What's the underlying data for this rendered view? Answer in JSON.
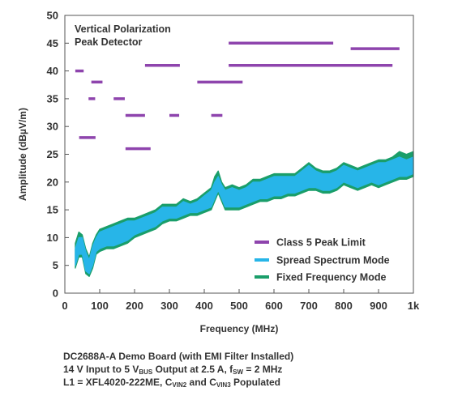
{
  "chart_data": {
    "type": "line",
    "annotation": [
      "Vertical Polarization",
      "Peak Detector"
    ],
    "xlabel": "Frequency (MHz)",
    "ylabel": "Amplitude (dBµV/m)",
    "xlim": [
      0,
      1000
    ],
    "ylim": [
      0,
      50
    ],
    "x_ticks": [
      0,
      100,
      200,
      300,
      400,
      500,
      600,
      700,
      800,
      900,
      1000
    ],
    "x_tick_labels": [
      "0",
      "100",
      "200",
      "300",
      "400",
      "500",
      "600",
      "700",
      "800",
      "900",
      "1k"
    ],
    "y_ticks": [
      0,
      5,
      10,
      15,
      20,
      25,
      30,
      35,
      40,
      45,
      50
    ],
    "y_tick_labels": [
      "0",
      "5",
      "10",
      "15",
      "20",
      "25",
      "30",
      "35",
      "40",
      "45",
      "50"
    ],
    "grid": false,
    "legend_position": "bottom-right",
    "limit_segments": {
      "name": "Class 5 Peak Limit",
      "color": "#8e44ad",
      "segments": [
        {
          "x": [
            30,
            54
          ],
          "y": 40
        },
        {
          "x": [
            41,
            88
          ],
          "y": 28
        },
        {
          "x": [
            68,
            87
          ],
          "y": 35
        },
        {
          "x": [
            76,
            108
          ],
          "y": 38
        },
        {
          "x": [
            140,
            172
          ],
          "y": 35
        },
        {
          "x": [
            174,
            230
          ],
          "y": 32
        },
        {
          "x": [
            174,
            246
          ],
          "y": 26
        },
        {
          "x": [
            230,
            330
          ],
          "y": 41
        },
        {
          "x": [
            300,
            328
          ],
          "y": 32
        },
        {
          "x": [
            380,
            510
          ],
          "y": 38
        },
        {
          "x": [
            420,
            452
          ],
          "y": 32
        },
        {
          "x": [
            470,
            770
          ],
          "y": 45
        },
        {
          "x": [
            470,
            940
          ],
          "y": 41
        },
        {
          "x": [
            820,
            960
          ],
          "y": 44
        }
      ]
    },
    "series": [
      {
        "name": "Spread Spectrum Mode",
        "color": "#27b5e8",
        "x": [
          30,
          40,
          50,
          60,
          70,
          80,
          90,
          100,
          120,
          140,
          160,
          180,
          200,
          220,
          240,
          260,
          280,
          300,
          320,
          340,
          360,
          380,
          400,
          420,
          430,
          440,
          450,
          460,
          480,
          500,
          520,
          540,
          560,
          580,
          600,
          620,
          640,
          660,
          680,
          700,
          720,
          740,
          760,
          780,
          800,
          820,
          840,
          860,
          880,
          900,
          920,
          940,
          960,
          980,
          1000
        ],
        "low": [
          5,
          7,
          7,
          4,
          3.5,
          5,
          7.5,
          8,
          8.5,
          8.5,
          9,
          9.5,
          10.5,
          11,
          11.5,
          12,
          13,
          13.5,
          13.5,
          14,
          14.5,
          14.5,
          15,
          15.5,
          17,
          18.5,
          17,
          15.5,
          15.5,
          15.5,
          16,
          16.5,
          17,
          17,
          17.5,
          17.5,
          18,
          18,
          18.5,
          19,
          19,
          18.5,
          18.5,
          19,
          20,
          19.5,
          19,
          19.5,
          20,
          19.5,
          20,
          20.5,
          21,
          21,
          21.5
        ],
        "high": [
          8,
          10,
          10,
          7.5,
          6,
          8.5,
          10,
          11,
          11.5,
          12,
          12.5,
          13,
          13,
          13.5,
          14,
          14.5,
          15.5,
          15.5,
          15.5,
          16.5,
          16,
          16.5,
          17.5,
          18.5,
          20,
          21,
          19.5,
          18.5,
          19,
          18.5,
          19,
          20,
          20,
          20.5,
          21,
          21,
          21,
          21,
          22,
          23,
          22,
          21.5,
          21.5,
          22,
          23,
          22.5,
          22,
          22.5,
          23,
          23.5,
          23.5,
          24,
          24.5,
          24,
          24.5
        ]
      },
      {
        "name": "Fixed Frequency Mode",
        "color": "#1a9e6a",
        "x": [
          30,
          40,
          50,
          60,
          70,
          80,
          90,
          100,
          120,
          140,
          160,
          180,
          200,
          220,
          240,
          260,
          280,
          300,
          320,
          340,
          360,
          380,
          400,
          420,
          430,
          440,
          450,
          460,
          480,
          500,
          520,
          540,
          560,
          580,
          600,
          620,
          640,
          660,
          680,
          700,
          720,
          740,
          760,
          780,
          800,
          820,
          840,
          860,
          880,
          900,
          920,
          940,
          960,
          980,
          1000
        ],
        "low": [
          4.5,
          6.5,
          6.5,
          3.5,
          3,
          4.5,
          7,
          7.5,
          8,
          8,
          8.5,
          9,
          10,
          10.5,
          11,
          11.5,
          12.5,
          13,
          13,
          13.5,
          14,
          14,
          14.5,
          15,
          16.5,
          18,
          16.5,
          15,
          15,
          15,
          15.5,
          16,
          16.5,
          16.5,
          17,
          17,
          17.5,
          17.5,
          18,
          18.5,
          18.5,
          18,
          18,
          18.5,
          19.5,
          19,
          18.5,
          19,
          19.5,
          19,
          19.5,
          20,
          20.5,
          20.5,
          21
        ],
        "high": [
          9,
          11,
          10.5,
          8,
          6.5,
          9,
          10.5,
          11.5,
          12,
          12.5,
          13,
          13.5,
          13.5,
          14,
          14.5,
          15,
          16,
          16,
          16,
          17,
          16.5,
          17,
          18,
          19,
          21,
          22,
          20,
          19,
          19.5,
          19,
          19.5,
          20.5,
          20.5,
          21,
          21.5,
          21.5,
          21.5,
          21.5,
          22.5,
          23.5,
          22.5,
          22,
          22,
          22.5,
          23.5,
          23,
          22.5,
          23,
          23.5,
          24,
          24,
          24.5,
          25.5,
          25,
          25.5
        ]
      }
    ]
  },
  "caption": {
    "line1": "DC2688A-A Demo Board (with EMI Filter Installed)",
    "line2_a": "14 V Input to 5 V",
    "line2_sub1": "BUS",
    "line2_b": " Output at 2.5 A, f",
    "line2_sub2": "SW",
    "line2_c": " = 2 MHz",
    "line3_a": "L1 = XFL4020-222ME, C",
    "line3_sub1": "VIN2",
    "line3_b": " and C",
    "line3_sub2": "VIN3",
    "line3_c": " Populated"
  }
}
